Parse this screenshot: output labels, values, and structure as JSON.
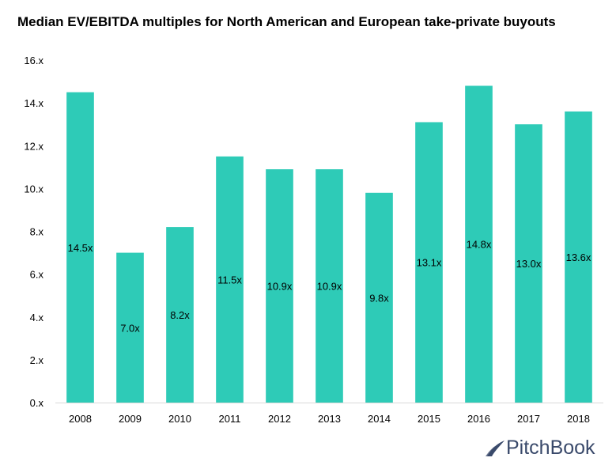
{
  "title": "Median EV/EBITDA multiples for North American and European take-private buyouts",
  "logo_text": "PitchBook",
  "colors": {
    "bar": "#2ecbb7",
    "logo": "#3a4a6b",
    "axis": "#d9d9d9",
    "text": "#000000"
  },
  "chart_data": {
    "type": "bar",
    "title": "Median EV/EBITDA multiples for North American and European take-private buyouts",
    "xlabel": "",
    "ylabel": "",
    "categories": [
      "2008",
      "2009",
      "2010",
      "2011",
      "2012",
      "2013",
      "2014",
      "2015",
      "2016",
      "2017",
      "2018"
    ],
    "values": [
      14.5,
      7.0,
      8.2,
      11.5,
      10.9,
      10.9,
      9.8,
      13.1,
      14.8,
      13.0,
      13.6
    ],
    "data_labels": [
      "14.5x",
      "7.0x",
      "8.2x",
      "11.5x",
      "10.9x",
      "10.9x",
      "9.8x",
      "13.1x",
      "14.8x",
      "13.0x",
      "13.6x"
    ],
    "ylim": [
      0,
      16
    ],
    "yticks": [
      0,
      2,
      4,
      6,
      8,
      10,
      12,
      14,
      16
    ],
    "ytick_labels": [
      "0.x",
      "2.x",
      "4.x",
      "6.x",
      "8.x",
      "10.x",
      "12.x",
      "14.x",
      "16.x"
    ],
    "grid": false,
    "legend": "none"
  }
}
